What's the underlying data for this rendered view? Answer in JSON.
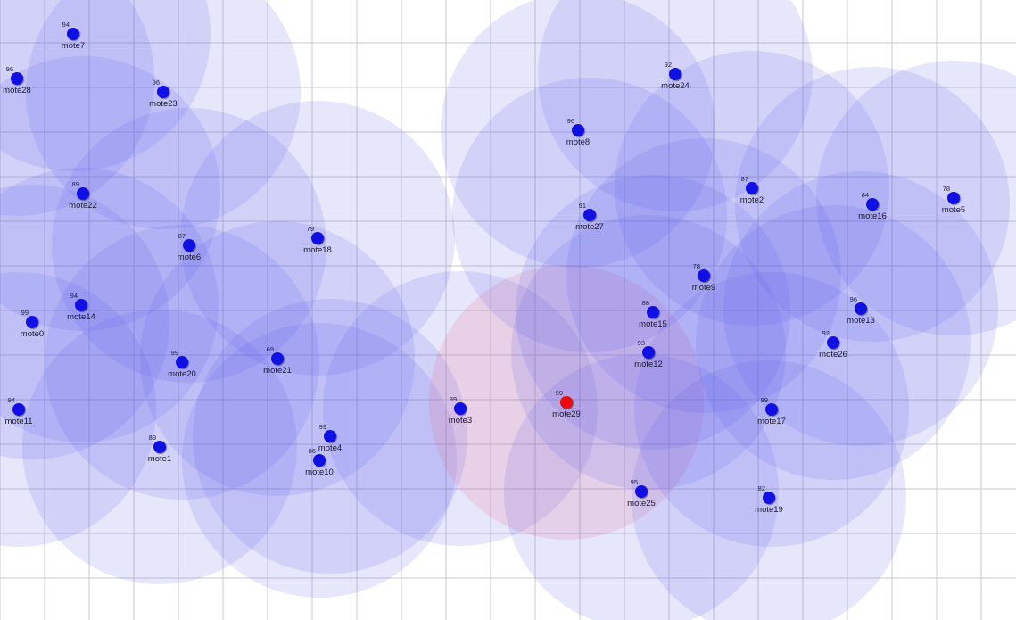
{
  "network": {
    "colors": {
      "mote": "#1010e6",
      "sink": "#ee0a0a",
      "range": "#5f5feb",
      "sink_range": "#eb5f78",
      "grid": "#c8c8d2"
    },
    "motes": [
      {
        "id": "mote7",
        "value": "94",
        "sink": false
      },
      {
        "id": "mote28",
        "value": "96",
        "sink": false
      },
      {
        "id": "mote23",
        "value": "96",
        "sink": false
      },
      {
        "id": "mote22",
        "value": "89",
        "sink": false
      },
      {
        "id": "mote6",
        "value": "87",
        "sink": false
      },
      {
        "id": "mote18",
        "value": "79",
        "sink": false
      },
      {
        "id": "mote14",
        "value": "94",
        "sink": false
      },
      {
        "id": "mote0",
        "value": "99",
        "sink": false
      },
      {
        "id": "mote20",
        "value": "99",
        "sink": false
      },
      {
        "id": "mote21",
        "value": "69",
        "sink": false
      },
      {
        "id": "mote11",
        "value": "94",
        "sink": false
      },
      {
        "id": "mote1",
        "value": "89",
        "sink": false
      },
      {
        "id": "mote4",
        "value": "99",
        "sink": false
      },
      {
        "id": "mote10",
        "value": "86",
        "sink": false
      },
      {
        "id": "mote3",
        "value": "99",
        "sink": false
      },
      {
        "id": "mote29",
        "value": "99",
        "sink": true
      },
      {
        "id": "mote24",
        "value": "92",
        "sink": false
      },
      {
        "id": "mote8",
        "value": "96",
        "sink": false
      },
      {
        "id": "mote27",
        "value": "91",
        "sink": false
      },
      {
        "id": "mote2",
        "value": "87",
        "sink": false
      },
      {
        "id": "mote16",
        "value": "84",
        "sink": false
      },
      {
        "id": "mote5",
        "value": "78",
        "sink": false
      },
      {
        "id": "mote9",
        "value": "78",
        "sink": false
      },
      {
        "id": "mote15",
        "value": "88",
        "sink": false
      },
      {
        "id": "mote12",
        "value": "93",
        "sink": false
      },
      {
        "id": "mote13",
        "value": "96",
        "sink": false
      },
      {
        "id": "mote26",
        "value": "92",
        "sink": false
      },
      {
        "id": "mote17",
        "value": "99",
        "sink": false
      },
      {
        "id": "mote25",
        "value": "95",
        "sink": false
      },
      {
        "id": "mote19",
        "value": "82",
        "sink": false
      }
    ]
  }
}
